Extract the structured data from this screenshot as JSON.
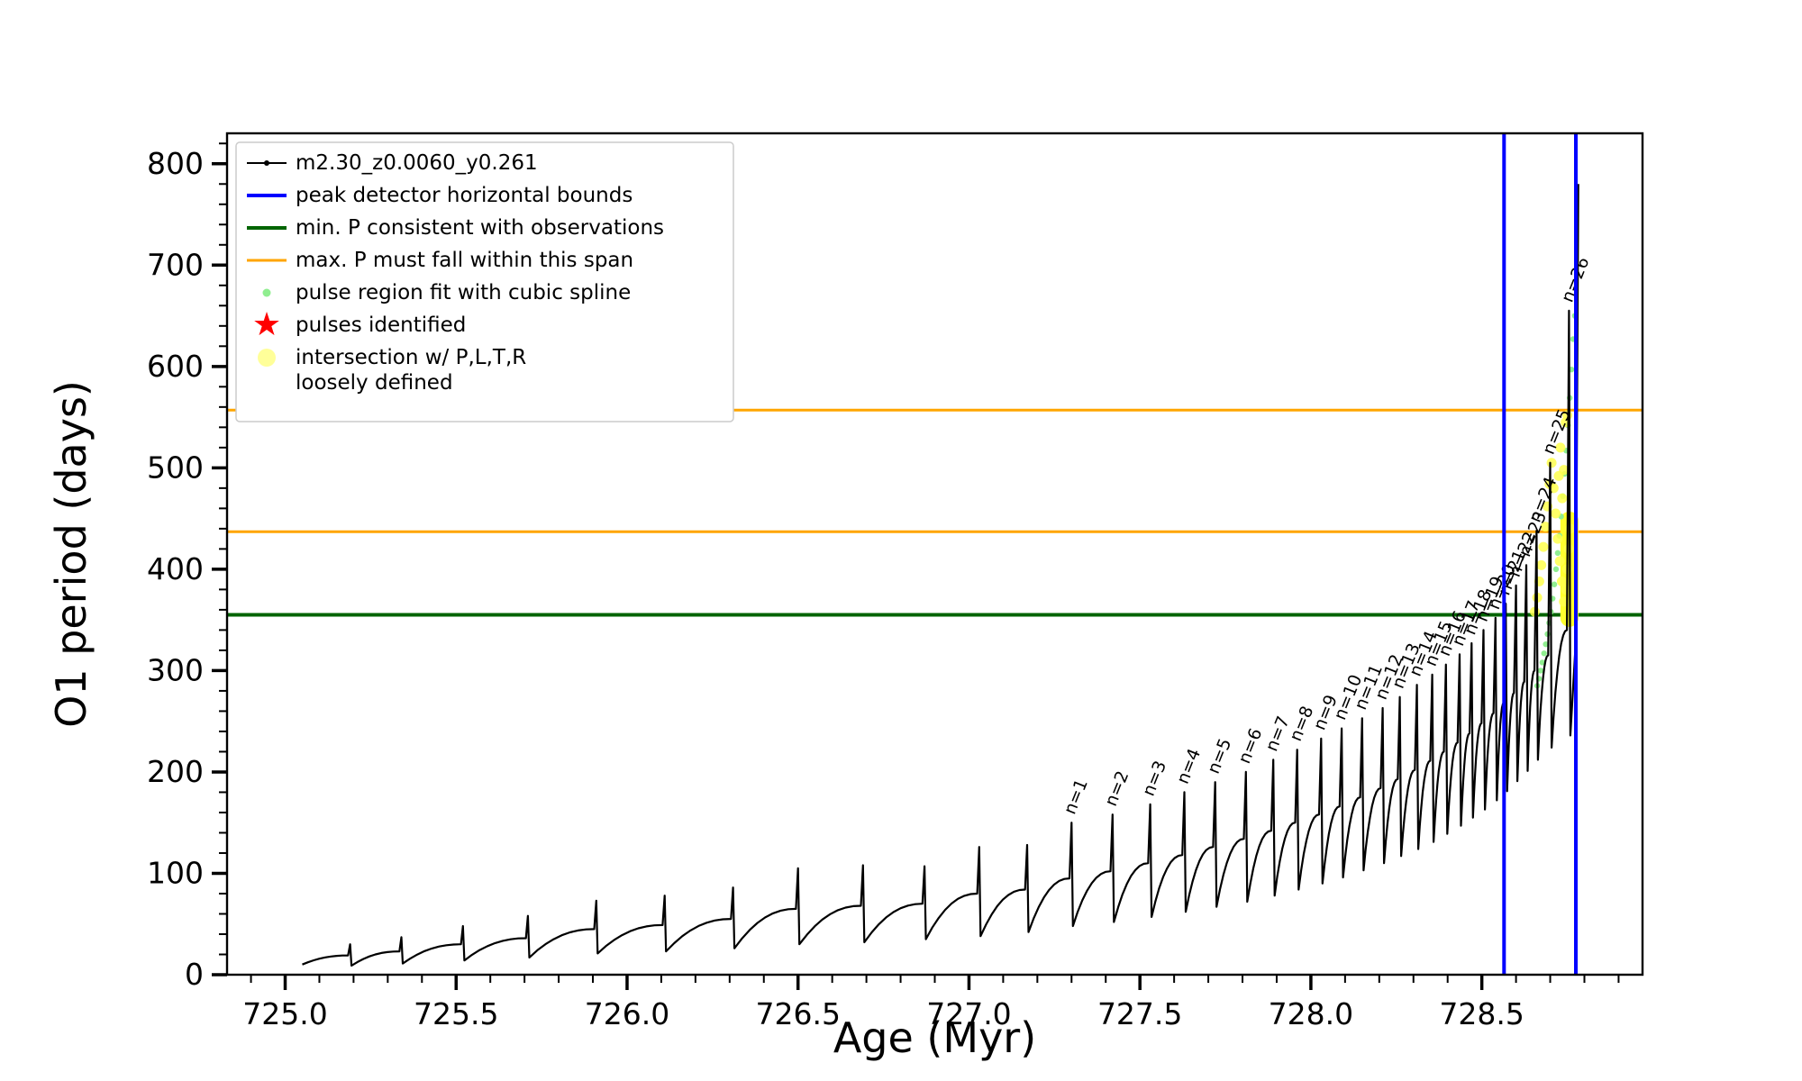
{
  "chart_data": {
    "type": "line",
    "title": "",
    "xlabel": "Age (Myr)",
    "ylabel": "O1 period (days)",
    "xlim": [
      724.83,
      728.97
    ],
    "ylim": [
      0,
      830
    ],
    "xticks": [
      {
        "v": 725.0,
        "label": "725.0"
      },
      {
        "v": 725.5,
        "label": "725.5"
      },
      {
        "v": 726.0,
        "label": "726.0"
      },
      {
        "v": 726.5,
        "label": "726.5"
      },
      {
        "v": 727.0,
        "label": "727.0"
      },
      {
        "v": 727.5,
        "label": "727.5"
      },
      {
        "v": 728.0,
        "label": "728.0"
      },
      {
        "v": 728.5,
        "label": "728.5"
      }
    ],
    "xminor_step": 0.1,
    "yticks": [
      {
        "v": 0,
        "label": "0"
      },
      {
        "v": 100,
        "label": "100"
      },
      {
        "v": 200,
        "label": "200"
      },
      {
        "v": 300,
        "label": "300"
      },
      {
        "v": 400,
        "label": "400"
      },
      {
        "v": 500,
        "label": "500"
      },
      {
        "v": 600,
        "label": "600"
      },
      {
        "v": 700,
        "label": "700"
      },
      {
        "v": 800,
        "label": "800"
      }
    ],
    "yminor_step": 20,
    "grid": false,
    "legend_position": "upper left",
    "legend": [
      {
        "label": "m2.30_z0.0060_y0.261",
        "marker": "line-dot",
        "color": "#000000"
      },
      {
        "label": "peak detector horizontal bounds",
        "marker": "line",
        "color": "#0000ff",
        "lw": 4
      },
      {
        "label": "min. P consistent with observations",
        "marker": "line",
        "color": "#006400",
        "lw": 4
      },
      {
        "label": "max. P must fall within this span",
        "marker": "line",
        "color": "#ffa500",
        "lw": 3
      },
      {
        "label": "pulse region fit with cubic spline",
        "marker": "dot",
        "color": "#90ee90"
      },
      {
        "label": "pulses identified",
        "marker": "star",
        "color": "#ff0000"
      },
      {
        "label": "intersection w/ P,L,T,R\nloosely defined",
        "marker": "dot-large",
        "color": "#ffff99"
      }
    ],
    "hlines": [
      {
        "name": "min-P-observed",
        "y": 355,
        "color": "#006400",
        "width": 4
      },
      {
        "name": "max-P-span-low",
        "y": 437,
        "color": "#ffa500",
        "width": 3
      },
      {
        "name": "max-P-span-high",
        "y": 557,
        "color": "#ffa500",
        "width": 3
      }
    ],
    "vlines": [
      {
        "name": "peak-detector-left",
        "x": 728.565,
        "color": "#0000ff",
        "width": 4
      },
      {
        "name": "peak-detector-right",
        "x": 728.775,
        "color": "#0000ff",
        "width": 4
      }
    ],
    "series": {
      "name": "m2.30_z0.0060_y0.261",
      "color": "#000000",
      "start": [
        725.05,
        10
      ],
      "pulses": [
        {
          "x": 725.19,
          "peak": 30,
          "sh": 19,
          "dip": 9
        },
        {
          "x": 725.34,
          "peak": 37,
          "sh": 23,
          "dip": 11
        },
        {
          "x": 725.52,
          "peak": 48,
          "sh": 30,
          "dip": 14
        },
        {
          "x": 725.71,
          "peak": 58,
          "sh": 36,
          "dip": 17
        },
        {
          "x": 725.91,
          "peak": 73,
          "sh": 45,
          "dip": 21
        },
        {
          "x": 726.11,
          "peak": 78,
          "sh": 49,
          "dip": 23
        },
        {
          "x": 726.31,
          "peak": 86,
          "sh": 55,
          "dip": 26
        },
        {
          "x": 726.5,
          "peak": 105,
          "sh": 65,
          "dip": 30
        },
        {
          "x": 726.69,
          "peak": 108,
          "sh": 68,
          "dip": 32
        },
        {
          "x": 726.87,
          "peak": 107,
          "sh": 70,
          "dip": 35
        },
        {
          "x": 727.03,
          "peak": 126,
          "sh": 80,
          "dip": 38
        },
        {
          "x": 727.17,
          "peak": 128,
          "sh": 84,
          "dip": 42
        },
        {
          "x": 727.3,
          "peak": 150,
          "sh": 95,
          "dip": 48,
          "label": "n=1"
        },
        {
          "x": 727.42,
          "peak": 158,
          "sh": 102,
          "dip": 52,
          "label": "n=2"
        },
        {
          "x": 727.53,
          "peak": 168,
          "sh": 110,
          "dip": 57,
          "label": "n=3"
        },
        {
          "x": 727.63,
          "peak": 180,
          "sh": 118,
          "dip": 62,
          "label": "n=4"
        },
        {
          "x": 727.72,
          "peak": 190,
          "sh": 126,
          "dip": 67,
          "label": "n=5"
        },
        {
          "x": 727.81,
          "peak": 200,
          "sh": 134,
          "dip": 72,
          "label": "n=6"
        },
        {
          "x": 727.89,
          "peak": 212,
          "sh": 142,
          "dip": 78,
          "label": "n=7"
        },
        {
          "x": 727.96,
          "peak": 222,
          "sh": 150,
          "dip": 84,
          "label": "n=8"
        },
        {
          "x": 728.03,
          "peak": 233,
          "sh": 158,
          "dip": 90,
          "label": "n=9"
        },
        {
          "x": 728.09,
          "peak": 243,
          "sh": 166,
          "dip": 96,
          "label": "n=10"
        },
        {
          "x": 728.15,
          "peak": 253,
          "sh": 175,
          "dip": 103,
          "label": "n=11"
        },
        {
          "x": 728.21,
          "peak": 263,
          "sh": 184,
          "dip": 110,
          "label": "n=12"
        },
        {
          "x": 728.26,
          "peak": 274,
          "sh": 193,
          "dip": 117,
          "label": "n=13"
        },
        {
          "x": 728.31,
          "peak": 286,
          "sh": 202,
          "dip": 124,
          "label": "n=14"
        },
        {
          "x": 728.355,
          "peak": 296,
          "sh": 211,
          "dip": 131,
          "label": "n=15"
        },
        {
          "x": 728.395,
          "peak": 306,
          "sh": 220,
          "dip": 139,
          "label": "n=16"
        },
        {
          "x": 728.435,
          "peak": 316,
          "sh": 229,
          "dip": 147,
          "label": "n=17"
        },
        {
          "x": 728.47,
          "peak": 327,
          "sh": 238,
          "dip": 155,
          "label": "n=18"
        },
        {
          "x": 728.505,
          "peak": 340,
          "sh": 248,
          "dip": 163,
          "label": "n=19"
        },
        {
          "x": 728.54,
          "peak": 352,
          "sh": 258,
          "dip": 172,
          "label": "n=20"
        },
        {
          "x": 728.57,
          "peak": 366,
          "sh": 268,
          "dip": 181,
          "label": "n=21"
        },
        {
          "x": 728.6,
          "peak": 384,
          "sh": 278,
          "dip": 191,
          "label": "n=22"
        },
        {
          "x": 728.63,
          "peak": 404,
          "sh": 289,
          "dip": 201,
          "label": "n=23"
        },
        {
          "x": 728.66,
          "peak": 438,
          "sh": 300,
          "dip": 212,
          "label": "n=24"
        },
        {
          "x": 728.7,
          "peak": 505,
          "sh": 315,
          "dip": 224,
          "label": "n=25"
        },
        {
          "x": 728.755,
          "peak": 655,
          "sh": 340,
          "dip": 236,
          "label": "n=26"
        }
      ],
      "tail": [
        [
          728.775,
          330
        ],
        [
          728.782,
          780
        ]
      ]
    },
    "spline_dots": {
      "color": "#90ee90",
      "points": [
        [
          728.662,
          285
        ],
        [
          728.667,
          292
        ],
        [
          728.672,
          300
        ],
        [
          728.677,
          308
        ],
        [
          728.682,
          317
        ],
        [
          728.687,
          326
        ],
        [
          728.692,
          336
        ],
        [
          728.697,
          347
        ],
        [
          728.702,
          358
        ],
        [
          728.707,
          371
        ],
        [
          728.712,
          385
        ],
        [
          728.717,
          400
        ],
        [
          728.722,
          416
        ],
        [
          728.727,
          433
        ],
        [
          728.732,
          452
        ],
        [
          728.737,
          472
        ],
        [
          728.742,
          494
        ],
        [
          728.747,
          517
        ],
        [
          728.752,
          542
        ],
        [
          728.757,
          569
        ],
        [
          728.762,
          597
        ],
        [
          728.767,
          627
        ],
        [
          728.772,
          650
        ]
      ]
    },
    "intersection_dots": {
      "color": "#ffff4d",
      "points": [
        [
          728.655,
          358
        ],
        [
          728.662,
          372
        ],
        [
          728.668,
          388
        ],
        [
          728.674,
          404
        ],
        [
          728.68,
          422
        ],
        [
          728.686,
          442
        ],
        [
          728.692,
          462
        ],
        [
          728.698,
          484
        ],
        [
          728.704,
          505
        ],
        [
          728.71,
          480
        ],
        [
          728.716,
          455
        ],
        [
          728.722,
          430
        ],
        [
          728.728,
          408
        ],
        [
          728.734,
          388
        ],
        [
          728.74,
          368
        ],
        [
          728.746,
          380
        ],
        [
          728.75,
          400
        ],
        [
          728.754,
          420
        ],
        [
          728.758,
          440
        ],
        [
          728.745,
          545
        ],
        [
          728.75,
          552
        ],
        [
          728.74,
          498
        ],
        [
          728.735,
          470
        ],
        [
          728.73,
          520
        ],
        [
          728.725,
          492
        ]
      ]
    },
    "intersection_blob": {
      "x": 728.756,
      "y0": 352,
      "y1": 448,
      "width": 20,
      "color": "#ffff2e"
    }
  }
}
